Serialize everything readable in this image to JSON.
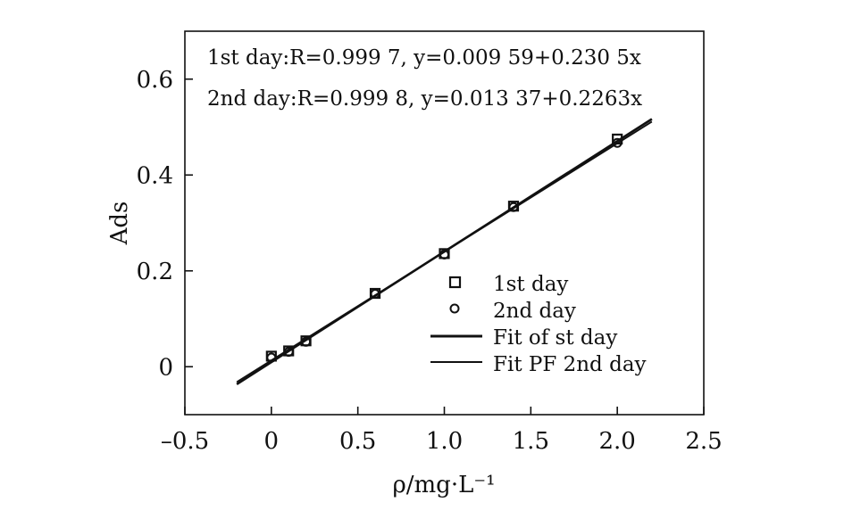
{
  "chart_data": {
    "type": "scatter",
    "xlabel": "ρ/mg·L⁻¹",
    "ylabel": "Ads",
    "xlim": [
      -0.5,
      2.5
    ],
    "ylim": [
      -0.1,
      0.7
    ],
    "xticks": [
      -0.5,
      0,
      0.5,
      1.0,
      1.5,
      2.0,
      2.5
    ],
    "xtick_labels": [
      "–0.5",
      "0",
      "0.5",
      "1.0",
      "1.5",
      "2.0",
      "2.5"
    ],
    "yticks": [
      0,
      0.2,
      0.4,
      0.6
    ],
    "ytick_labels": [
      "0",
      "0.2",
      "0.4",
      "0.6"
    ],
    "annotations": [
      "1st day:R=0.999 7, y=0.009 59+0.230 5x",
      "2nd day:R=0.999 8, y=0.013 37+0.2263x"
    ],
    "series": [
      {
        "name": "1st day",
        "marker": "square",
        "x": [
          0,
          0.1,
          0.2,
          0.6,
          1.0,
          1.4,
          2.0
        ],
        "y": [
          0.022,
          0.033,
          0.054,
          0.153,
          0.236,
          0.335,
          0.475
        ]
      },
      {
        "name": "2nd day",
        "marker": "circle",
        "x": [
          0,
          0.1,
          0.2,
          0.6,
          1.0,
          1.4,
          2.0
        ],
        "y": [
          0.019,
          0.031,
          0.052,
          0.152,
          0.234,
          0.333,
          0.467
        ]
      },
      {
        "name": "Fit of st day",
        "type": "line",
        "x": [
          -0.2,
          2.2
        ],
        "y": [
          -0.0365,
          0.5167
        ]
      },
      {
        "name": "Fit PF 2nd day",
        "type": "line",
        "x": [
          -0.2,
          2.2
        ],
        "y": [
          -0.0319,
          0.5113
        ]
      }
    ],
    "legend_position": "bottom-right",
    "grid": false,
    "colors": {
      "ink": "#111111"
    }
  }
}
